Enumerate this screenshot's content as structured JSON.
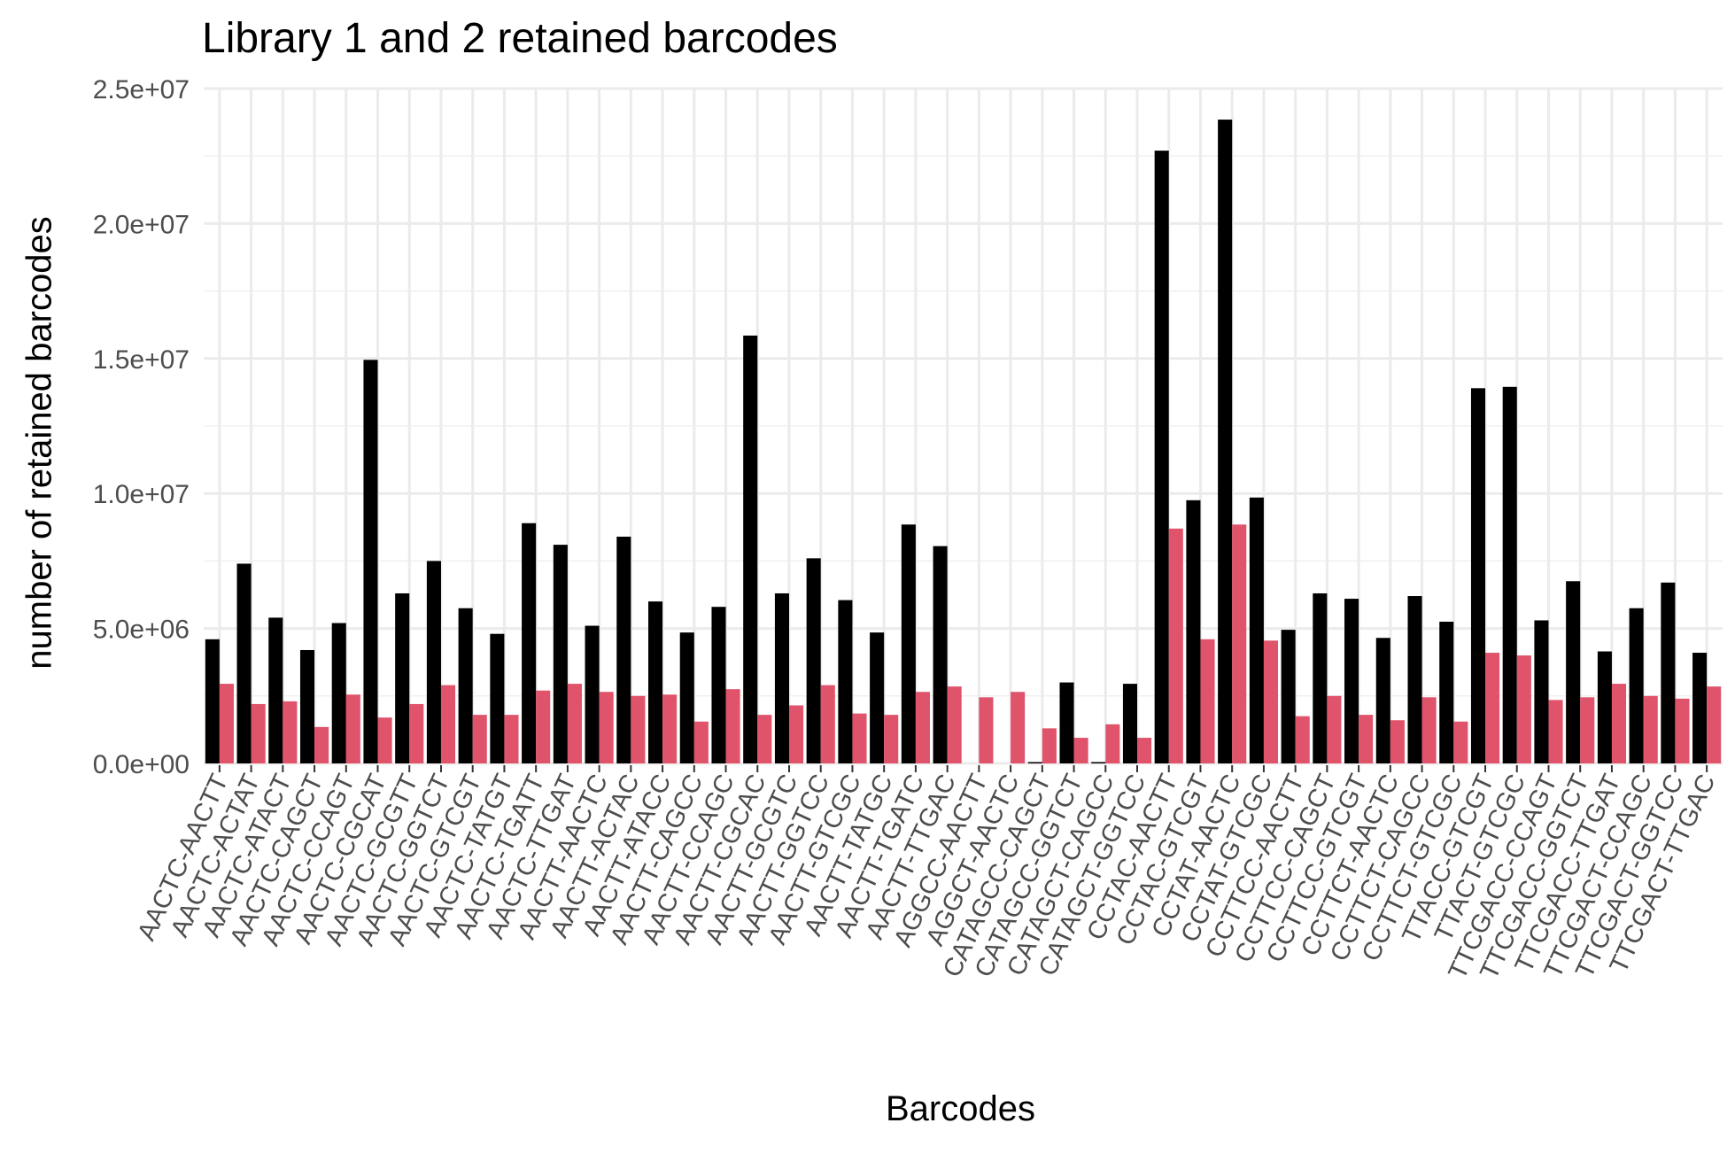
{
  "chart_data": {
    "type": "bar",
    "title": "Library 1 and 2 retained barcodes",
    "xlabel": "Barcodes",
    "ylabel": "number of retained barcodes",
    "ylim": [
      0,
      25000000
    ],
    "yticks": [
      0,
      5000000,
      10000000,
      15000000,
      20000000,
      25000000
    ],
    "ytick_labels": [
      "0.0e+00",
      "5.0e+06",
      "1.0e+07",
      "1.5e+07",
      "2.0e+07",
      "2.5e+07"
    ],
    "grid": true,
    "legend": "none",
    "colors": [
      "#000000",
      "#DF536B"
    ],
    "categories": [
      "AACTC-AACTT",
      "AACTC-ACTAT",
      "AACTC-ATACT",
      "AACTC-CAGCT",
      "AACTC-CCAGT",
      "AACTC-CGCAT",
      "AACTC-GCGTT",
      "AACTC-GGTCT",
      "AACTC-GTCGT",
      "AACTC-TATGT",
      "AACTC-TGATT",
      "AACTC-TTGAT",
      "AACTT-AACTC",
      "AACTT-ACTAC",
      "AACTT-ATACC",
      "AACTT-CAGCC",
      "AACTT-CCAGC",
      "AACTT-CGCAC",
      "AACTT-GCGTC",
      "AACTT-GGTCC",
      "AACTT-GTCGC",
      "AACTT-TATGC",
      "AACTT-TGATC",
      "AACTT-TTGAC",
      "AGGCC-AACTT",
      "AGGCT-AACTC",
      "CATAGCC-CAGCT",
      "CATAGCC-GGTCT",
      "CATAGCT-CAGCC",
      "CATAGCT-GGTCC",
      "CCTAC-AACTT",
      "CCTAC-GTCGT",
      "CCTAT-AACTC",
      "CCTAT-GTCGC",
      "CCTTCC-AACTT",
      "CCTTCC-CAGCT",
      "CCTTCC-GTCGT",
      "CCTTCT-AACTC",
      "CCTTCT-CAGCC",
      "CCTTCT-GTCGC",
      "TTACC-GTCGT",
      "TTACT-GTCGC",
      "TTCGACC-CCAGT",
      "TTCGACC-GGTCT",
      "TTCGACC-TTGAT",
      "TTCGACT-CCAGC",
      "TTCGACT-GGTCC",
      "TTCGACT-TTGAC"
    ],
    "series": [
      {
        "values": [
          4600000,
          7400000,
          5400000,
          4200000,
          5200000,
          14950000,
          6300000,
          7500000,
          5750000,
          4800000,
          8900000,
          8100000,
          5100000,
          8400000,
          6000000,
          4850000,
          5800000,
          15850000,
          6300000,
          7600000,
          6050000,
          4850000,
          8850000,
          8050000,
          0,
          0,
          50000,
          3000000,
          50000,
          2950000,
          22700000,
          9750000,
          23850000,
          9850000,
          4950000,
          6300000,
          6100000,
          4650000,
          6200000,
          5250000,
          13900000,
          13950000,
          5300000,
          6750000,
          4150000,
          5750000,
          6700000,
          4100000
        ]
      },
      {
        "values": [
          2950000,
          2200000,
          2300000,
          1350000,
          2550000,
          1700000,
          2200000,
          2900000,
          1800000,
          1800000,
          2700000,
          2950000,
          2650000,
          2500000,
          2550000,
          1550000,
          2750000,
          1800000,
          2150000,
          2900000,
          1850000,
          1800000,
          2650000,
          2850000,
          2450000,
          2650000,
          1300000,
          950000,
          1450000,
          950000,
          8700000,
          4600000,
          8850000,
          4550000,
          1750000,
          2500000,
          1800000,
          1600000,
          2450000,
          1550000,
          4100000,
          4000000,
          2350000,
          2450000,
          2950000,
          2500000,
          2400000,
          2850000
        ]
      }
    ]
  }
}
